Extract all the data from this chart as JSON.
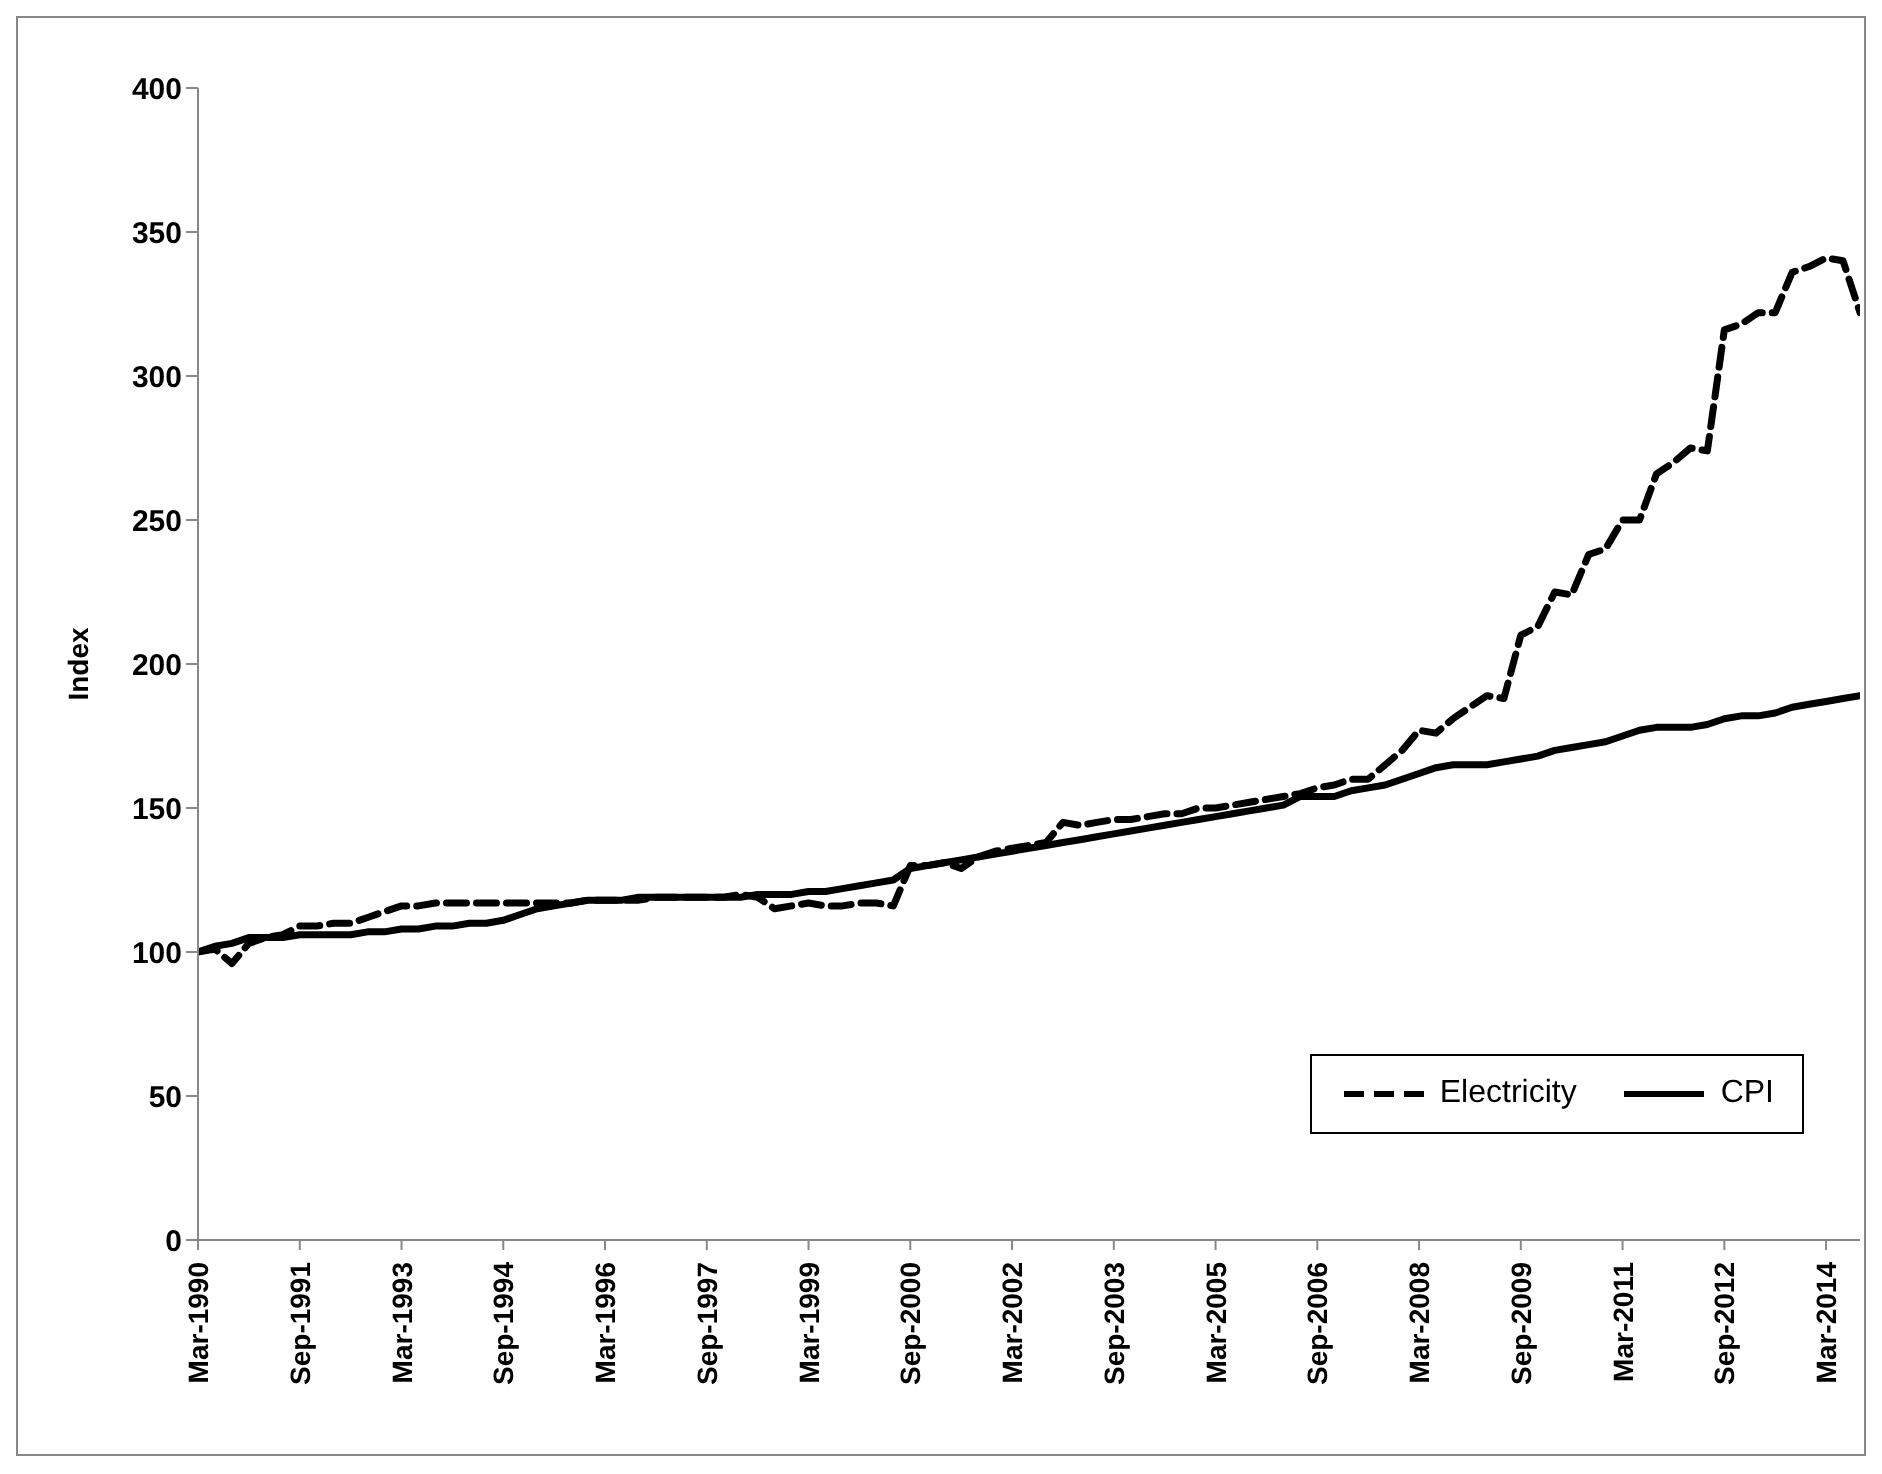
{
  "chart_data": {
    "type": "line",
    "ylabel": "Index",
    "ylim": [
      0,
      400
    ],
    "yticks": [
      0,
      50,
      100,
      150,
      200,
      250,
      300,
      350,
      400
    ],
    "grid": false,
    "legend": "bottom right",
    "marker": "none",
    "categories": [
      "Mar-1990",
      null,
      null,
      null,
      null,
      null,
      "Sep-1991",
      null,
      null,
      null,
      null,
      null,
      "Mar-1993",
      null,
      null,
      null,
      null,
      null,
      "Sep-1994",
      null,
      null,
      null,
      null,
      null,
      "Mar-1996",
      null,
      null,
      null,
      null,
      null,
      "Sep-1997",
      null,
      null,
      null,
      null,
      null,
      "Mar-1999",
      null,
      null,
      null,
      null,
      null,
      "Sep-2000",
      null,
      null,
      null,
      null,
      null,
      "Mar-2002",
      null,
      null,
      null,
      null,
      null,
      "Sep-2003",
      null,
      null,
      null,
      null,
      null,
      "Mar-2005",
      null,
      null,
      null,
      null,
      null,
      "Sep-2006",
      null,
      null,
      null,
      null,
      null,
      "Mar-2008",
      null,
      null,
      null,
      null,
      null,
      "Sep-2009",
      null,
      null,
      null,
      null,
      null,
      "Mar-2011",
      null,
      null,
      null,
      null,
      null,
      "Sep-2012",
      null,
      null,
      null,
      null,
      null,
      "Mar-2014",
      null,
      null
    ],
    "series": [
      {
        "name": "Electricity",
        "color": "#000000",
        "line_style": "dashed",
        "values": [
          100,
          101,
          96,
          103,
          105,
          106,
          109,
          109,
          110,
          110,
          112,
          114,
          116,
          116,
          117,
          117,
          117,
          117,
          117,
          117,
          117,
          117,
          117,
          118,
          118,
          118,
          118,
          119,
          119,
          119,
          119,
          119,
          120,
          119,
          115,
          116,
          117,
          116,
          116,
          117,
          117,
          116,
          130,
          130,
          131,
          129,
          133,
          135,
          136,
          137,
          138,
          145,
          144,
          145,
          146,
          146,
          147,
          148,
          148,
          150,
          150,
          151,
          152,
          153,
          154,
          155,
          157,
          158,
          160,
          160,
          165,
          170,
          177,
          176,
          181,
          185,
          189,
          188,
          210,
          213,
          225,
          224,
          238,
          240,
          250,
          250,
          266,
          270,
          275,
          274,
          316,
          318,
          322,
          322,
          336,
          338,
          341,
          340,
          322
        ]
      },
      {
        "name": "CPI",
        "color": "#000000",
        "line_style": "solid",
        "values": [
          100,
          102,
          103,
          105,
          105,
          105,
          106,
          106,
          106,
          106,
          107,
          107,
          108,
          108,
          109,
          109,
          110,
          110,
          111,
          113,
          115,
          116,
          117,
          118,
          118,
          118,
          119,
          119,
          119,
          119,
          119,
          119,
          119,
          120,
          120,
          120,
          121,
          121,
          122,
          123,
          124,
          125,
          129,
          130,
          131,
          132,
          133,
          134,
          135,
          136,
          137,
          138,
          139,
          140,
          141,
          142,
          143,
          144,
          145,
          146,
          147,
          148,
          149,
          150,
          151,
          154,
          154,
          154,
          156,
          157,
          158,
          160,
          162,
          164,
          165,
          165,
          165,
          166,
          167,
          168,
          170,
          171,
          172,
          173,
          175,
          177,
          178,
          178,
          178,
          179,
          181,
          182,
          182,
          183,
          185,
          186,
          187,
          188,
          189
        ]
      }
    ]
  }
}
